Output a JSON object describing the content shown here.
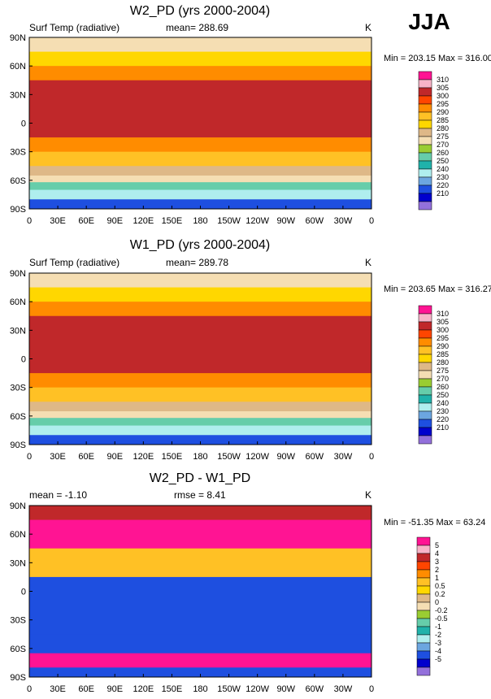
{
  "season": "JJA",
  "panels": [
    {
      "title": "W2_PD (yrs 2000-2004)",
      "left_label": "Surf Temp (radiative)",
      "mean_label": "mean= 288.69",
      "rmse_label": "",
      "units": "K",
      "minmax": "Min = 203.15 Max = 316.00"
    },
    {
      "title": "W1_PD (yrs 2000-2004)",
      "left_label": "Surf Temp (radiative)",
      "mean_label": "mean= 289.78",
      "rmse_label": "",
      "units": "K",
      "minmax": "Min = 203.65 Max = 316.27"
    },
    {
      "title": "W2_PD - W1_PD",
      "left_label": "mean =  -1.10",
      "mean_label": "",
      "rmse_label": "rmse =   8.41",
      "units": "K",
      "minmax": "Min = -51.35 Max =  63.24"
    }
  ],
  "axes": {
    "lat_labels": [
      "90N",
      "60N",
      "30N",
      "0",
      "30S",
      "60S",
      "90S"
    ],
    "lon_labels": [
      "0",
      "30E",
      "60E",
      "90E",
      "120E",
      "150E",
      "180",
      "150W",
      "120W",
      "90W",
      "60W",
      "30W",
      "0"
    ]
  },
  "chart_data": [
    {
      "type": "heatmap",
      "title": "W2_PD (yrs 2000-2004)",
      "variable": "Surf Temp (radiative)",
      "units": "K",
      "mean": 288.69,
      "min": 203.15,
      "max": 316.0,
      "lat_range": [
        -90,
        90
      ],
      "lon_range": [
        0,
        360
      ],
      "lat_bands": [
        {
          "lat": [
            75,
            90
          ],
          "value": 270
        },
        {
          "lat": [
            60,
            75
          ],
          "value": 280
        },
        {
          "lat": [
            45,
            60
          ],
          "value": 290
        },
        {
          "lat": [
            15,
            45
          ],
          "value": 300
        },
        {
          "lat": [
            -15,
            15
          ],
          "value": 300
        },
        {
          "lat": [
            -30,
            -15
          ],
          "value": 292
        },
        {
          "lat": [
            -45,
            -30
          ],
          "value": 285
        },
        {
          "lat": [
            -55,
            -45
          ],
          "value": 277
        },
        {
          "lat": [
            -62,
            -55
          ],
          "value": 270
        },
        {
          "lat": [
            -70,
            -62
          ],
          "value": 250
        },
        {
          "lat": [
            -80,
            -70
          ],
          "value": 230
        },
        {
          "lat": [
            -90,
            -80
          ],
          "value": 215
        }
      ],
      "colorbar": {
        "levels": [
          "310",
          "305",
          "300",
          "295",
          "290",
          "285",
          "280",
          "275",
          "270",
          "260",
          "250",
          "240",
          "230",
          "220",
          "210"
        ],
        "colors": [
          "#ff1493",
          "#f8b4c8",
          "#c0282a",
          "#ff4500",
          "#ff8c00",
          "#ffc125",
          "#ffd700",
          "#deb887",
          "#f5deb3",
          "#9acd32",
          "#66cdaa",
          "#20b2aa",
          "#afeeee",
          "#6ca6e0",
          "#1e4fe0",
          "#0000cd",
          "#9370db"
        ]
      }
    },
    {
      "type": "heatmap",
      "title": "W1_PD (yrs 2000-2004)",
      "variable": "Surf Temp (radiative)",
      "units": "K",
      "mean": 289.78,
      "min": 203.65,
      "max": 316.27,
      "lat_range": [
        -90,
        90
      ],
      "lon_range": [
        0,
        360
      ],
      "lat_bands": [
        {
          "lat": [
            75,
            90
          ],
          "value": 270
        },
        {
          "lat": [
            60,
            75
          ],
          "value": 282
        },
        {
          "lat": [
            45,
            60
          ],
          "value": 292
        },
        {
          "lat": [
            15,
            45
          ],
          "value": 300
        },
        {
          "lat": [
            -15,
            15
          ],
          "value": 301
        },
        {
          "lat": [
            -30,
            -15
          ],
          "value": 293
        },
        {
          "lat": [
            -45,
            -30
          ],
          "value": 286
        },
        {
          "lat": [
            -55,
            -45
          ],
          "value": 277
        },
        {
          "lat": [
            -62,
            -55
          ],
          "value": 270
        },
        {
          "lat": [
            -70,
            -62
          ],
          "value": 250
        },
        {
          "lat": [
            -80,
            -70
          ],
          "value": 230
        },
        {
          "lat": [
            -90,
            -80
          ],
          "value": 215
        }
      ],
      "colorbar": {
        "levels": [
          "310",
          "305",
          "300",
          "295",
          "290",
          "285",
          "280",
          "275",
          "270",
          "260",
          "250",
          "240",
          "230",
          "220",
          "210"
        ],
        "colors": [
          "#ff1493",
          "#f8b4c8",
          "#c0282a",
          "#ff4500",
          "#ff8c00",
          "#ffc125",
          "#ffd700",
          "#deb887",
          "#f5deb3",
          "#9acd32",
          "#66cdaa",
          "#20b2aa",
          "#afeeee",
          "#6ca6e0",
          "#1e4fe0",
          "#0000cd",
          "#9370db"
        ]
      }
    },
    {
      "type": "heatmap",
      "title": "W2_PD - W1_PD",
      "units": "K",
      "mean": -1.1,
      "rmse": 8.41,
      "min": -51.35,
      "max": 63.24,
      "lat_range": [
        -90,
        90
      ],
      "lon_range": [
        0,
        360
      ],
      "lat_bands": [
        {
          "lat": [
            75,
            90
          ],
          "value": 3
        },
        {
          "lat": [
            45,
            75
          ],
          "value": 5
        },
        {
          "lat": [
            15,
            45
          ],
          "value": 0.5
        },
        {
          "lat": [
            -15,
            15
          ],
          "value": -5
        },
        {
          "lat": [
            -45,
            -15
          ],
          "value": -5
        },
        {
          "lat": [
            -65,
            -45
          ],
          "value": -5
        },
        {
          "lat": [
            -80,
            -65
          ],
          "value": 5
        },
        {
          "lat": [
            -90,
            -80
          ],
          "value": -5
        }
      ],
      "colorbar": {
        "levels": [
          "5",
          "4",
          "3",
          "2",
          "1",
          "0.5",
          "0.2",
          "0",
          "-0.2",
          "-0.5",
          "-1",
          "-2",
          "-3",
          "-4",
          "-5"
        ],
        "colors": [
          "#ff1493",
          "#f8b4c8",
          "#c0282a",
          "#ff4500",
          "#ff8c00",
          "#ffc125",
          "#ffd700",
          "#deb887",
          "#f5deb3",
          "#9acd32",
          "#66cdaa",
          "#20b2aa",
          "#afeeee",
          "#6ca6e0",
          "#1e4fe0",
          "#0000cd",
          "#9370db"
        ]
      }
    }
  ]
}
